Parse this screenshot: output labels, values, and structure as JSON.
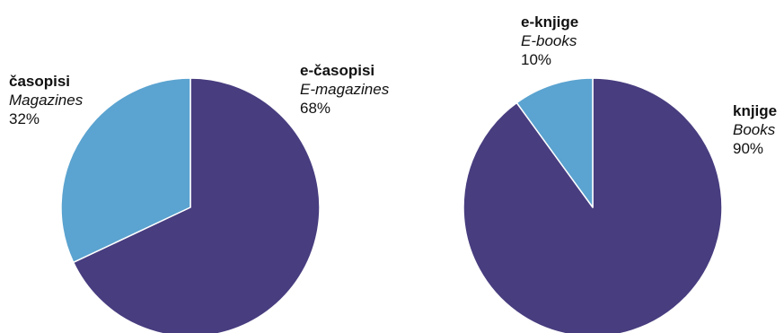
{
  "chart_data": [
    {
      "type": "pie",
      "slices": [
        {
          "label": "e-časopisi",
          "label_en": "E-magazines",
          "percent_label": "68%",
          "value": 68,
          "color": "#483d7f"
        },
        {
          "label": "časopisi",
          "label_en": "Magazines",
          "percent_label": "32%",
          "value": 32,
          "color": "#5ba3d0"
        }
      ]
    },
    {
      "type": "pie",
      "slices": [
        {
          "label": "knjige",
          "label_en": "Books",
          "percent_label": "90%",
          "value": 90,
          "color": "#483d7f"
        },
        {
          "label": "e-knjige",
          "label_en": "E-books",
          "percent_label": "10%",
          "value": 10,
          "color": "#5ba3d0"
        }
      ]
    }
  ]
}
